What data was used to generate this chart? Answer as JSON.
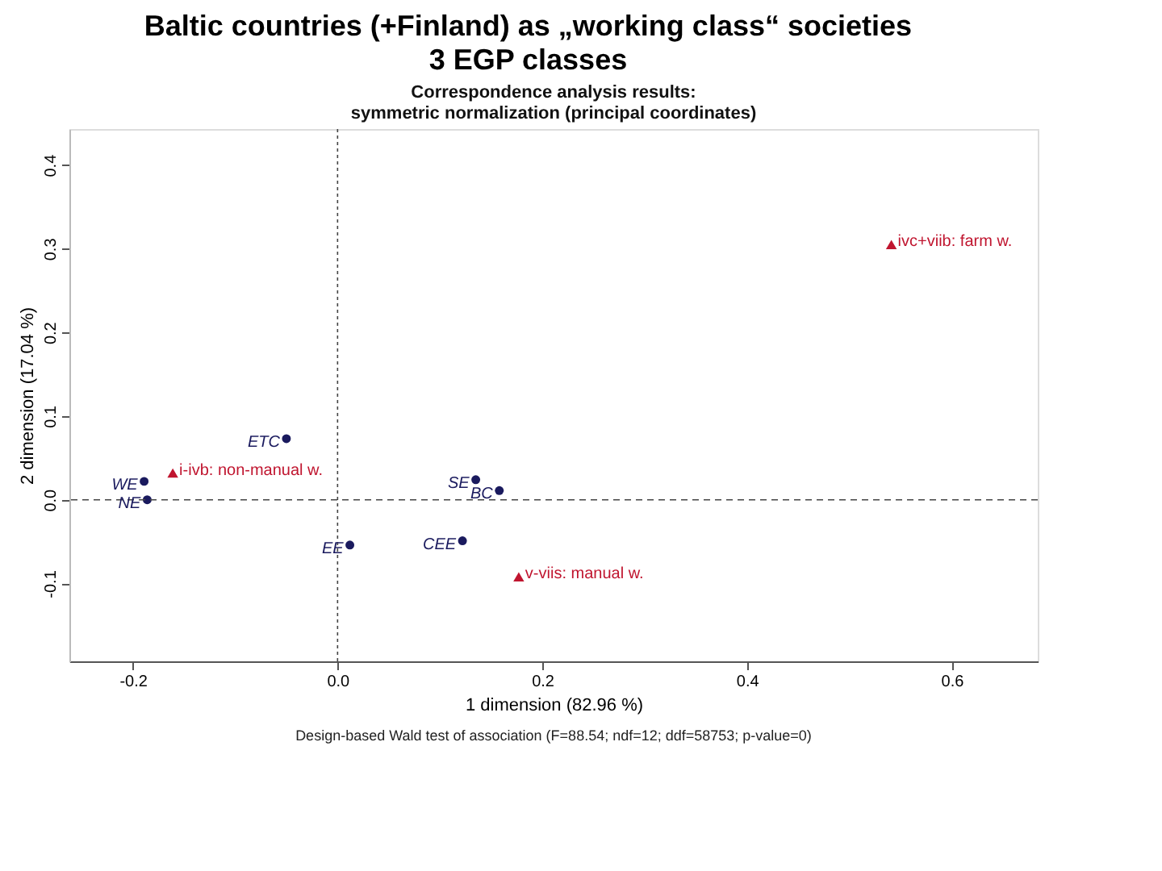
{
  "chart_data": {
    "type": "scatter",
    "title": "Baltic countries (+Finland) as „working class“ societies",
    "subtitle": "3 EGP classes",
    "xlabel": "1 dimension (82.96 %)",
    "ylabel": "2 dimension (17.04 %)",
    "annotations": [
      "Correspondence analysis results:",
      "symmetric normalization (principal coordinates)",
      "Design-based Wald test of association (F=88.54; ndf=12; ddf=58753; p-value=0)",
      {
        "text": "WE",
        "x": -0.189,
        "y": 0.022
      },
      {
        "text": "NE",
        "x": -0.186,
        "y": 0.0
      },
      {
        "text": "ETC",
        "x": -0.05,
        "y": 0.073
      },
      {
        "text": "EE",
        "x": 0.012,
        "y": -0.054
      },
      {
        "text": "SE",
        "x": 0.135,
        "y": 0.024
      },
      {
        "text": "BC",
        "x": 0.158,
        "y": 0.011
      },
      {
        "text": "CEE",
        "x": 0.122,
        "y": -0.049
      },
      {
        "text": "i-ivb: non-manual w.",
        "x": -0.161,
        "y": 0.032
      },
      {
        "text": "v-viis: manual w.",
        "x": 0.177,
        "y": -0.092
      },
      {
        "text": "ivc+viib: farm w.",
        "x": 0.541,
        "y": 0.305
      }
    ],
    "series": [
      {
        "color": "#1a1a5e",
        "marker": "circle",
        "x": [
          -0.189,
          -0.186,
          -0.05,
          0.012,
          0.135,
          0.158,
          0.122
        ],
        "values": [
          0.022,
          0.0,
          0.073,
          -0.054,
          0.024,
          0.011,
          -0.049
        ]
      },
      {
        "color": "#c0152f",
        "marker": "triangle",
        "x": [
          -0.161,
          0.177,
          0.541
        ],
        "values": [
          0.032,
          -0.092,
          0.305
        ]
      }
    ],
    "xlim": [
      -0.262,
      0.684
    ],
    "ylim": [
      -0.193,
      0.443
    ],
    "xticks": [
      -0.2,
      {
        "value": 0,
        "label": "0.0"
      },
      0.2,
      0.4,
      0.6
    ],
    "yticks": [
      -0.1,
      {
        "value": 0,
        "label": "0.0"
      },
      0.1,
      0.2,
      0.3,
      0.4
    ],
    "ref_lines": [
      {
        "axis": "x",
        "value": 0,
        "line_style": "dotted",
        "color": "#444444"
      },
      {
        "axis": "y",
        "value": 0,
        "line_style": "dashed",
        "color": "#444444"
      }
    ],
    "grid": false
  }
}
